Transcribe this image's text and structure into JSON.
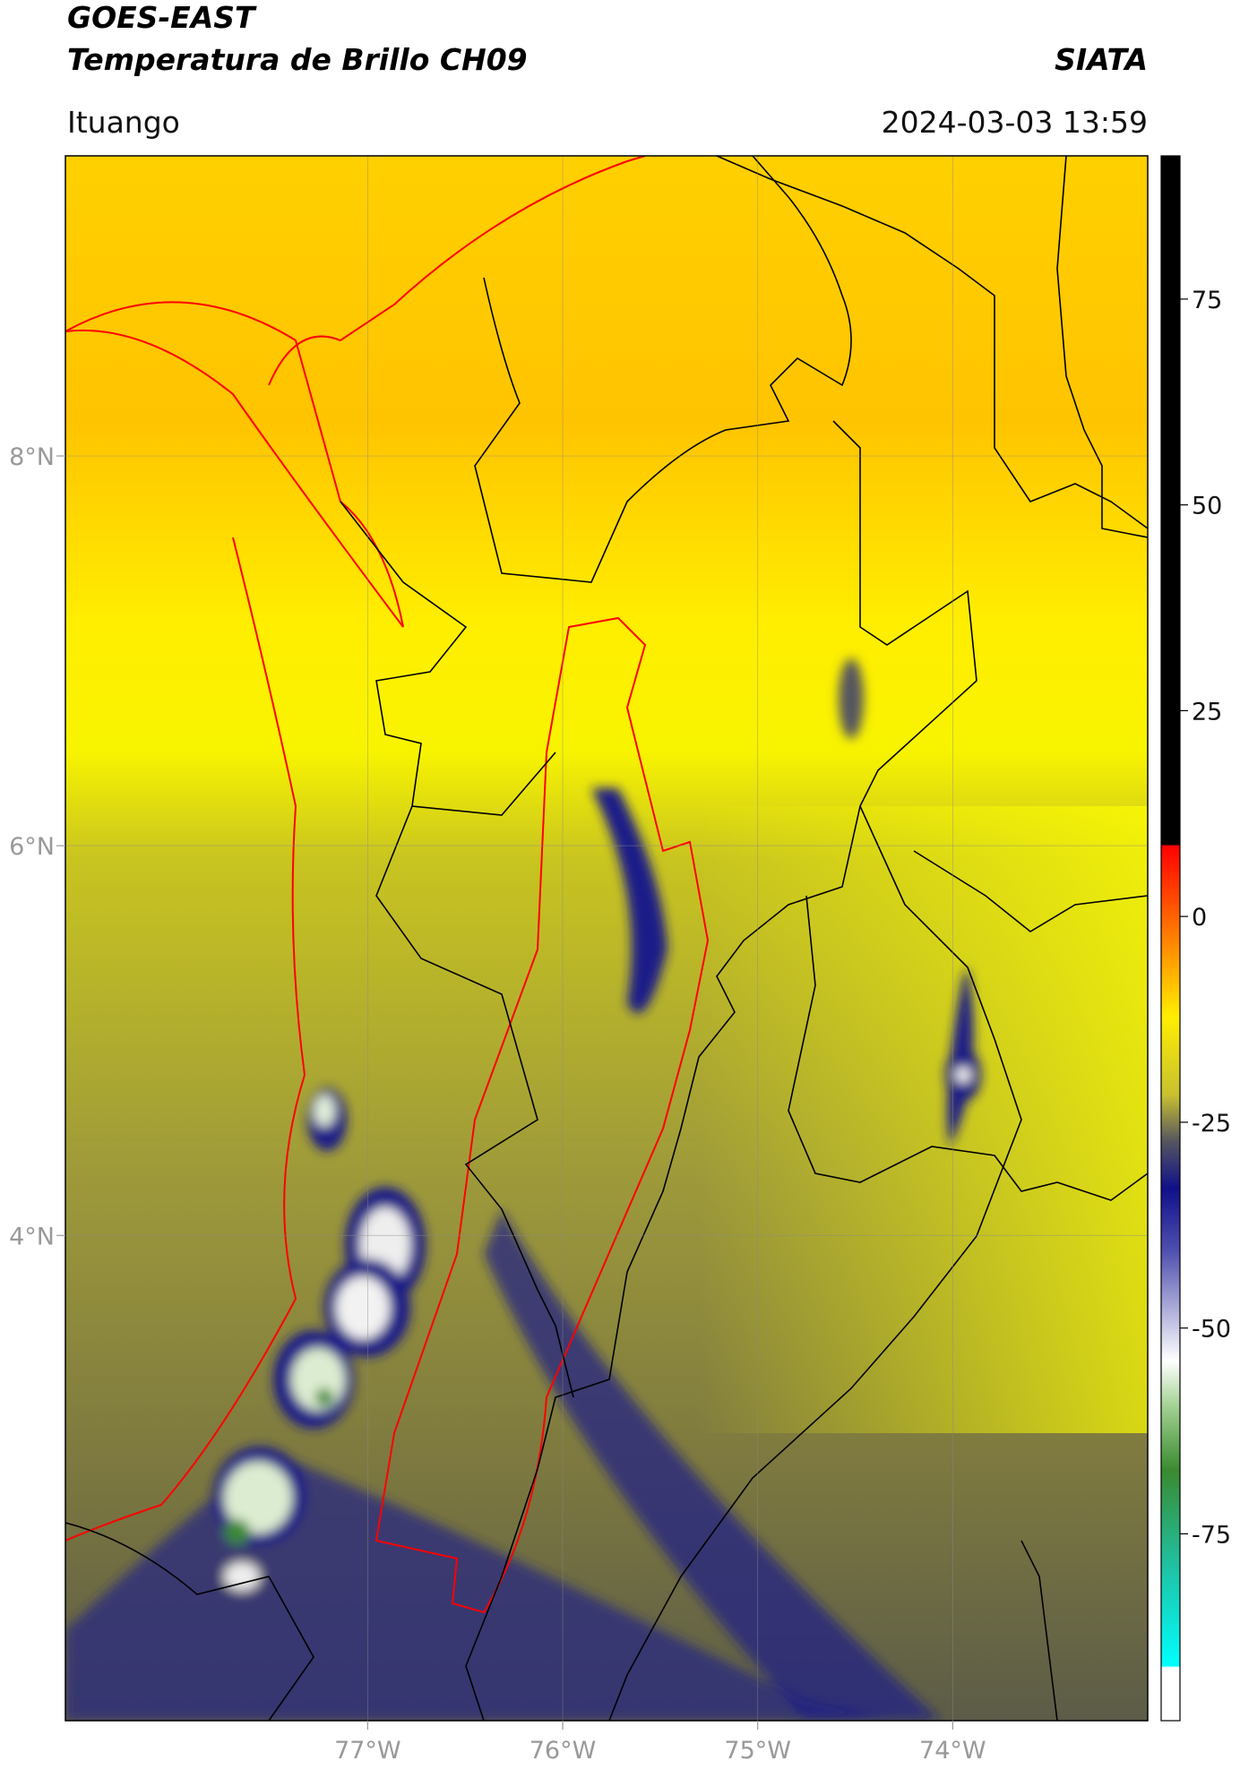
{
  "header": {
    "satellite": "GOES-EAST",
    "product": "Temperatura de Brillo CH09",
    "source": "SIATA",
    "region": "Ituango",
    "datetime": "2024-03-03 13:59"
  },
  "map": {
    "lonlim": [
      -78.55,
      -73.0
    ],
    "latlim": [
      1.51,
      9.54
    ],
    "lon_ticks": [
      {
        "value": -77,
        "label": "77°W"
      },
      {
        "value": -76,
        "label": "76°W"
      },
      {
        "value": -75,
        "label": "75°W"
      },
      {
        "value": -74,
        "label": "74°W"
      }
    ],
    "lat_ticks": [
      {
        "value": 8,
        "label": "8°N"
      },
      {
        "value": 6,
        "label": "6°N"
      },
      {
        "value": 4,
        "label": "4°N"
      }
    ]
  },
  "colorbar": {
    "clim": [
      -97.7,
      92.4
    ],
    "ticks": [
      75,
      50,
      25,
      0,
      -25,
      -50,
      -75
    ]
  }
}
